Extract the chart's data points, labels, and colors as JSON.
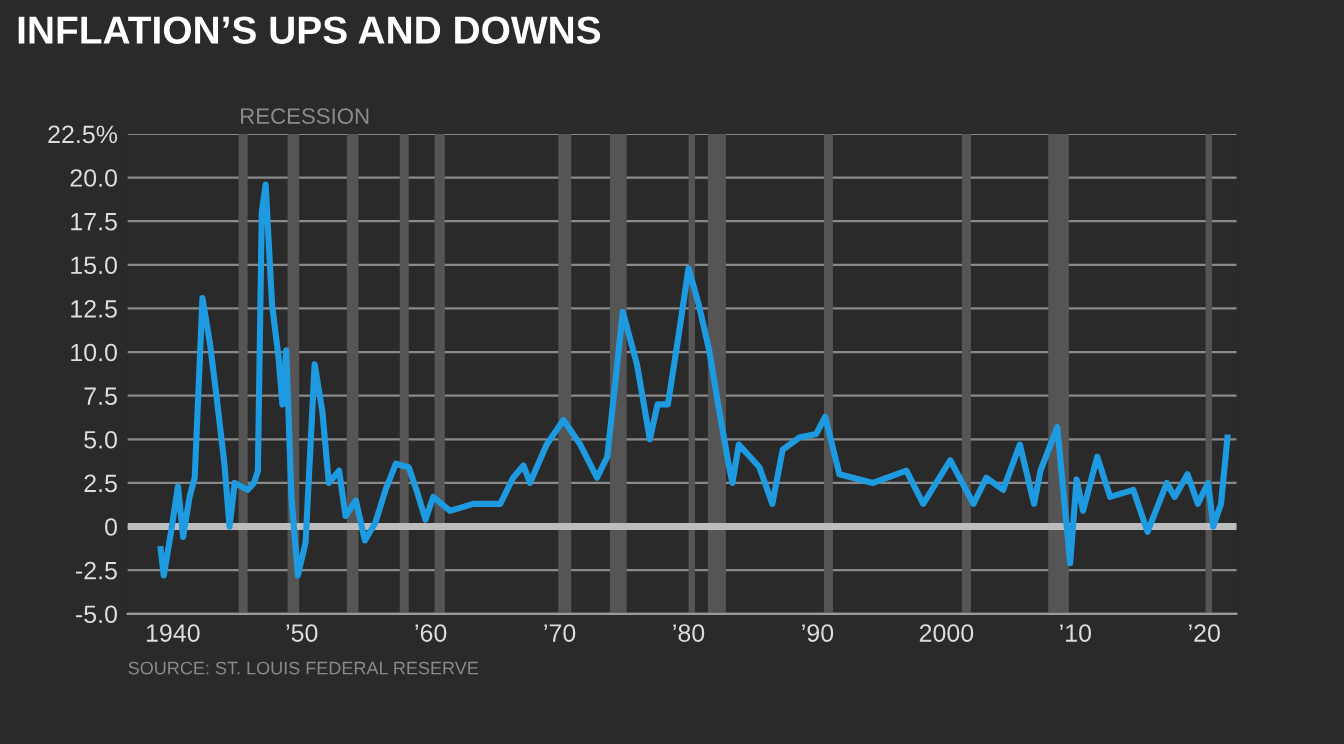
{
  "chart_data": {
    "type": "line",
    "title": "INFLATION’S UPS AND DOWNS",
    "x": [
      1939.06,
      1939.3,
      1939.8,
      1940.4,
      1940.8,
      1941.3,
      1941.7,
      1942.3,
      1942.9,
      1943.4,
      1944.0,
      1944.4,
      1944.8,
      1945.8,
      1946.3,
      1946.6,
      1946.9,
      1947.2,
      1947.7,
      1948.2,
      1948.5,
      1948.8,
      1949.2,
      1949.7,
      1950.3,
      1951.0,
      1951.6,
      1952.1,
      1952.9,
      1953.4,
      1954.2,
      1954.9,
      1955.7,
      1956.5,
      1957.3,
      1958.3,
      1958.9,
      1959.6,
      1960.2,
      1961.5,
      1963.3,
      1965.4,
      1966.4,
      1967.2,
      1967.7,
      1969.0,
      1970.3,
      1971.6,
      1972.9,
      1973.7,
      1974.9,
      1976.0,
      1977.0,
      1977.6,
      1978.4,
      1979.2,
      1980.0,
      1980.8,
      1981.6,
      1982.3,
      1983.1,
      1983.4,
      1983.9,
      1985.5,
      1986.5,
      1987.3,
      1988.6,
      1989.9,
      1990.6,
      1991.7,
      1994.3,
      1996.9,
      1998.2,
      2000.3,
      2002.1,
      2003.1,
      2004.4,
      2005.7,
      2006.8,
      2007.3,
      2008.6,
      2009.6,
      2010.1,
      2010.6,
      2011.7,
      2012.7,
      2014.5,
      2015.6,
      2017.1,
      2017.7,
      2018.7,
      2019.5,
      2020.3,
      2020.7,
      2021.3,
      2021.8
    ],
    "series": [
      {
        "color": "#1e9be0",
        "values": [
          -1.3,
          -2.8,
          -0.6,
          2.3,
          -0.6,
          1.7,
          2.8,
          13.1,
          10.4,
          7.4,
          3.6,
          0,
          2.5,
          2.1,
          2.5,
          3.2,
          18.0,
          19.6,
          12.7,
          9.7,
          7.0,
          10.1,
          1.7,
          -2.8,
          -0.9,
          9.3,
          6.6,
          2.5,
          3.2,
          0.6,
          1.5,
          -0.8,
          0.2,
          2.1,
          3.6,
          3.4,
          2.1,
          0.4,
          1.7,
          0.9,
          1.3,
          1.3,
          2.8,
          3.5,
          2.5,
          4.7,
          6.1,
          4.7,
          2.8,
          4.0,
          12.3,
          9.3,
          5.0,
          7.0,
          7.0,
          10.8,
          14.8,
          12.7,
          10.1,
          7.0,
          3.6,
          2.5,
          4.7,
          3.4,
          1.3,
          4.4,
          5.1,
          5.3,
          6.3,
          3.0,
          2.5,
          3.2,
          1.3,
          3.8,
          1.3,
          2.8,
          2.1,
          4.7,
          1.3,
          3.2,
          5.7,
          -2.1,
          2.7,
          0.9,
          4.0,
          1.7,
          2.1,
          -0.3,
          2.5,
          1.7,
          3.0,
          1.3,
          2.5,
          0,
          1.3,
          5.1
        ]
      }
    ],
    "xlim": [
      1936.5,
      2022.5
    ],
    "xticks": [
      {
        "value": 1940,
        "label": "1940"
      },
      {
        "value": 1950,
        "label": "’50"
      },
      {
        "value": 1960,
        "label": "’60"
      },
      {
        "value": 1970,
        "label": "’70"
      },
      {
        "value": 1980,
        "label": "’80"
      },
      {
        "value": 1990,
        "label": "’90"
      },
      {
        "value": 2000,
        "label": "2000"
      },
      {
        "value": 2010,
        "label": "’10"
      },
      {
        "value": 2020,
        "label": "’20"
      }
    ],
    "ylim": [
      -5,
      22.5
    ],
    "yticks": [
      {
        "value": -5,
        "label": "-5.0"
      },
      {
        "value": -2.5,
        "label": "-2.5"
      },
      0,
      2.5,
      {
        "value": 5,
        "label": "5.0"
      },
      7.5,
      {
        "value": 10,
        "label": "10.0"
      },
      12.5,
      {
        "value": 15,
        "label": "15.0"
      },
      17.5,
      {
        "value": 20,
        "label": "20.0"
      },
      {
        "value": 22.5,
        "label": "22.5%"
      }
    ],
    "grid": "y",
    "marker": "none",
    "line_style": "solid",
    "ref_lines": [
      {
        "axis": "y",
        "value": 0,
        "color": "#bdbdbd"
      }
    ],
    "bands": [
      {
        "axis": "x",
        "from": 1945.1,
        "to": 1945.8,
        "label": "RECESSION",
        "color": "#555555"
      },
      {
        "axis": "x",
        "from": 1948.9,
        "to": 1949.8,
        "color": "#555555"
      },
      {
        "axis": "x",
        "from": 1953.5,
        "to": 1954.4,
        "color": "#555555"
      },
      {
        "axis": "x",
        "from": 1957.6,
        "to": 1958.3,
        "color": "#555555"
      },
      {
        "axis": "x",
        "from": 1960.3,
        "to": 1961.1,
        "color": "#555555"
      },
      {
        "axis": "x",
        "from": 1969.9,
        "to": 1970.9,
        "color": "#555555"
      },
      {
        "axis": "x",
        "from": 1973.9,
        "to": 1975.2,
        "color": "#555555"
      },
      {
        "axis": "x",
        "from": 1980.0,
        "to": 1980.5,
        "color": "#555555"
      },
      {
        "axis": "x",
        "from": 1981.5,
        "to": 1982.9,
        "color": "#555555"
      },
      {
        "axis": "x",
        "from": 1990.5,
        "to": 1991.2,
        "color": "#555555"
      },
      {
        "axis": "x",
        "from": 2001.2,
        "to": 2001.9,
        "color": "#555555"
      },
      {
        "axis": "x",
        "from": 2007.9,
        "to": 2009.5,
        "color": "#555555"
      },
      {
        "axis": "x",
        "from": 2020.1,
        "to": 2020.6,
        "color": "#555555"
      }
    ],
    "annotations": [
      "SOURCE: ST. LOUIS FEDERAL RESERVE"
    ]
  }
}
